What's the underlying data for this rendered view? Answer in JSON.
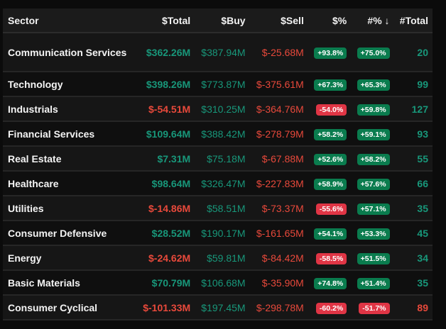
{
  "headers": {
    "sector": "Sector",
    "total": "$Total",
    "buy": "$Buy",
    "sell": "$Sell",
    "pct": "$%",
    "cnt_pct": "#%",
    "cnt_total": "#Total",
    "sort_icon": "↓"
  },
  "colors": {
    "positive": "#18977a",
    "negative": "#e8493b",
    "badge_positive": "#0a7c4e",
    "badge_negative": "#e03545"
  },
  "rows": [
    {
      "sector": "Communication Services",
      "total": "$362.26M",
      "buy": "$387.94M",
      "sell": "$-25.68M",
      "pct": "+93.8%",
      "cnt_pct": "+75.0%",
      "cnt_total": "20"
    },
    {
      "sector": "Technology",
      "total": "$398.26M",
      "buy": "$773.87M",
      "sell": "$-375.61M",
      "pct": "+67.3%",
      "cnt_pct": "+65.3%",
      "cnt_total": "99"
    },
    {
      "sector": "Industrials",
      "total": "$-54.51M",
      "buy": "$310.25M",
      "sell": "$-364.76M",
      "pct": "-54.0%",
      "cnt_pct": "+59.8%",
      "cnt_total": "127"
    },
    {
      "sector": "Financial Services",
      "total": "$109.64M",
      "buy": "$388.42M",
      "sell": "$-278.79M",
      "pct": "+58.2%",
      "cnt_pct": "+59.1%",
      "cnt_total": "93"
    },
    {
      "sector": "Real Estate",
      "total": "$7.31M",
      "buy": "$75.18M",
      "sell": "$-67.88M",
      "pct": "+52.6%",
      "cnt_pct": "+58.2%",
      "cnt_total": "55"
    },
    {
      "sector": "Healthcare",
      "total": "$98.64M",
      "buy": "$326.47M",
      "sell": "$-227.83M",
      "pct": "+58.9%",
      "cnt_pct": "+57.6%",
      "cnt_total": "66"
    },
    {
      "sector": "Utilities",
      "total": "$-14.86M",
      "buy": "$58.51M",
      "sell": "$-73.37M",
      "pct": "-55.6%",
      "cnt_pct": "+57.1%",
      "cnt_total": "35"
    },
    {
      "sector": "Consumer Defensive",
      "total": "$28.52M",
      "buy": "$190.17M",
      "sell": "$-161.65M",
      "pct": "+54.1%",
      "cnt_pct": "+53.3%",
      "cnt_total": "45"
    },
    {
      "sector": "Energy",
      "total": "$-24.62M",
      "buy": "$59.81M",
      "sell": "$-84.42M",
      "pct": "-58.5%",
      "cnt_pct": "+51.5%",
      "cnt_total": "34"
    },
    {
      "sector": "Basic Materials",
      "total": "$70.79M",
      "buy": "$106.68M",
      "sell": "$-35.90M",
      "pct": "+74.8%",
      "cnt_pct": "+51.4%",
      "cnt_total": "35"
    },
    {
      "sector": "Consumer Cyclical",
      "total": "$-101.33M",
      "buy": "$197.45M",
      "sell": "$-298.78M",
      "pct": "-60.2%",
      "cnt_pct": "-51.7%",
      "cnt_total": "89"
    }
  ]
}
